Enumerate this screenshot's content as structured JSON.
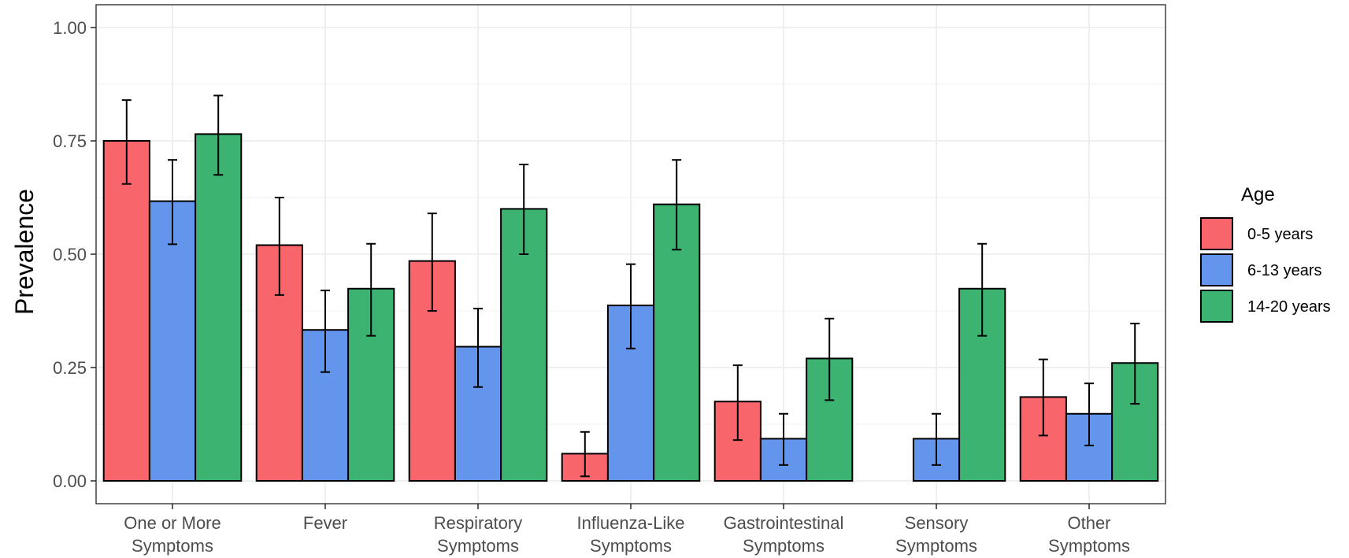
{
  "chart_data": {
    "type": "bar",
    "title": "",
    "xlabel": "",
    "ylabel": "Prevalence",
    "ylim": [
      0,
      1.0
    ],
    "yticks": [
      {
        "value": 0,
        "label": "0.00"
      },
      {
        "value": 0.25,
        "label": "0.25"
      },
      {
        "value": 0.5,
        "label": "0.50"
      },
      {
        "value": 0.75,
        "label": "0.75"
      },
      {
        "value": 1.0,
        "label": "1.00"
      }
    ],
    "categories": [
      [
        "One or More",
        "Symptoms"
      ],
      [
        "Fever"
      ],
      [
        "Respiratory",
        "Symptoms"
      ],
      [
        "Influenza-Like",
        "Symptoms"
      ],
      [
        "Gastrointestinal",
        "Symptoms"
      ],
      [
        "Sensory",
        "Symptoms"
      ],
      [
        "Other",
        "Symptoms"
      ]
    ],
    "grid": true,
    "legend": {
      "title": "Age",
      "placement": "right"
    },
    "series": [
      {
        "name": "0-5 years",
        "color": "#f8666c",
        "values": [
          0.75,
          0.52,
          0.485,
          0.06,
          0.175,
          0.0,
          0.185
        ],
        "lower": [
          0.655,
          0.41,
          0.375,
          0.01,
          0.09,
          0.0,
          0.1
        ],
        "upper": [
          0.84,
          0.625,
          0.59,
          0.108,
          0.255,
          0.0,
          0.268
        ]
      },
      {
        "name": "6-13 years",
        "color": "#6495ed",
        "values": [
          0.617,
          0.333,
          0.296,
          0.387,
          0.093,
          0.093,
          0.148
        ],
        "lower": [
          0.522,
          0.24,
          0.207,
          0.292,
          0.035,
          0.035,
          0.078
        ],
        "upper": [
          0.708,
          0.42,
          0.38,
          0.478,
          0.148,
          0.148,
          0.215
        ]
      },
      {
        "name": "14-20 years",
        "color": "#3cb371",
        "values": [
          0.765,
          0.424,
          0.6,
          0.61,
          0.27,
          0.424,
          0.26
        ],
        "lower": [
          0.675,
          0.32,
          0.5,
          0.51,
          0.178,
          0.32,
          0.17
        ],
        "upper": [
          0.85,
          0.523,
          0.698,
          0.708,
          0.358,
          0.523,
          0.347
        ]
      }
    ]
  }
}
